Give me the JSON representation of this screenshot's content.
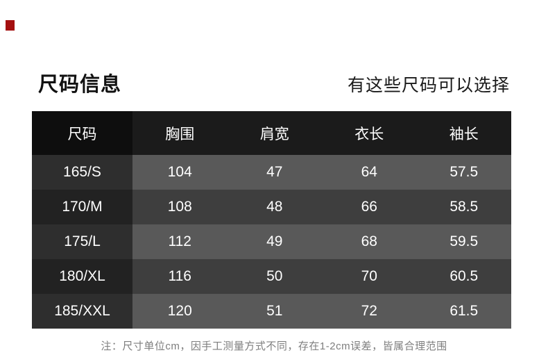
{
  "header": {
    "title": "尺码信息",
    "subtitle": "有这些尺码可以选择"
  },
  "size_table": {
    "headers": [
      "尺码",
      "胸围",
      "肩宽",
      "衣长",
      "袖长"
    ],
    "rows": [
      [
        "165/S",
        "104",
        "47",
        "64",
        "57.5"
      ],
      [
        "170/M",
        "108",
        "48",
        "66",
        "58.5"
      ],
      [
        "175/L",
        "112",
        "49",
        "68",
        "59.5"
      ],
      [
        "180/XL",
        "116",
        "50",
        "70",
        "60.5"
      ],
      [
        "185/XXL",
        "120",
        "51",
        "72",
        "61.5"
      ]
    ]
  },
  "footnote": {
    "text": "注：尺寸单位cm，因手工测量方式不同，存在1-2cm误差，皆属合理范围"
  },
  "colors": {
    "accent_red": "#a40f0f",
    "header_first_col_bg": "#0e0e0e",
    "header_bg": "#1b1b1b",
    "row_odd_first_col_bg": "#2e2e2e",
    "row_odd_bg": "#595959",
    "row_even_first_col_bg": "#222222",
    "row_even_bg": "#3e3e3e",
    "title_text": "#111111",
    "table_text": "#ffffff",
    "note_text": "#7e7e7e"
  }
}
